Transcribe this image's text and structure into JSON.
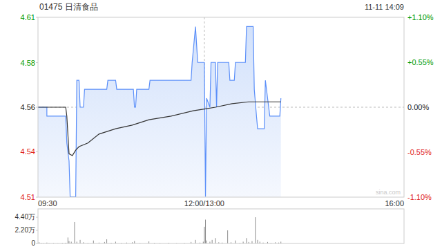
{
  "chart_data": [
    {
      "type": "line",
      "title": "01475 日清食品",
      "subtitle": "11-11 14:09",
      "annotations": [
        "sina.com"
      ],
      "xlim": [
        0,
        330
      ],
      "xticks": [
        {
          "value": 0,
          "label": "09:30"
        },
        {
          "value": 150,
          "label": "12:00/13:00"
        },
        {
          "value": 330,
          "label": "16:00"
        }
      ],
      "ylim": [
        4.5098,
        4.6102
      ],
      "yticks": [
        {
          "value": 4.5098,
          "label": "4.51"
        },
        {
          "value": 4.5351,
          "label": "4.54"
        },
        {
          "value": 4.56,
          "label": "4.56"
        },
        {
          "value": 4.5849,
          "label": "4.58"
        },
        {
          "value": 4.6102,
          "label": "4.61"
        }
      ],
      "y2lim": [
        -1.1,
        1.1
      ],
      "y2ticks": [
        {
          "value": -1.1,
          "label": "-1.10%"
        },
        {
          "value": -0.55,
          "label": "-0.55%"
        },
        {
          "value": 0,
          "label": "0.00%"
        },
        {
          "value": 0.55,
          "label": "+0.55%"
        },
        {
          "value": 1.1,
          "label": "+1.10%"
        }
      ],
      "grid": true,
      "series": [
        {
          "type": "area",
          "color": "#5b8ff9",
          "x": [
            0,
            8,
            8,
            25,
            26,
            28,
            29,
            34,
            35,
            37,
            38,
            41,
            42,
            62,
            63,
            70,
            71,
            86,
            87,
            88,
            89,
            100,
            101,
            138,
            139,
            142,
            144,
            150,
            151,
            152,
            155,
            156,
            160,
            161,
            162,
            172,
            173,
            177,
            178,
            187,
            188,
            194,
            195,
            197,
            198,
            204,
            205,
            209,
            218,
            219
          ],
          "values": [
            4.56,
            4.56,
            4.555,
            4.555,
            4.54,
            4.53,
            4.51,
            4.51,
            4.575,
            4.575,
            4.56,
            4.56,
            4.57,
            4.57,
            4.575,
            4.575,
            4.57,
            4.57,
            4.56,
            4.56,
            4.57,
            4.57,
            4.575,
            4.575,
            4.585,
            4.605,
            4.585,
            4.585,
            4.51,
            4.565,
            4.56,
            4.585,
            4.585,
            4.56,
            4.585,
            4.585,
            4.575,
            4.575,
            4.585,
            4.585,
            4.605,
            4.605,
            4.57,
            4.555,
            4.548,
            4.548,
            4.575,
            4.555,
            4.555,
            4.565
          ]
        },
        {
          "type": "line",
          "color": "#333333",
          "x": [
            0,
            25,
            26,
            28,
            31,
            34,
            37,
            45,
            55,
            70,
            85,
            100,
            120,
            140,
            150,
            160,
            175,
            190,
            200,
            219
          ],
          "values": [
            4.56,
            4.56,
            4.555,
            4.534,
            4.533,
            4.536,
            4.538,
            4.54,
            4.545,
            4.548,
            4.55,
            4.553,
            4.555,
            4.558,
            4.559,
            4.56,
            4.562,
            4.563,
            4.563,
            4.563
          ]
        }
      ]
    },
    {
      "type": "bar",
      "color": "#8c8c8c",
      "tick_labels": "y",
      "xlim": [
        0,
        330
      ],
      "ylim": [
        0,
        58000
      ],
      "yticks": [
        0,
        {
          "value": 22000,
          "label": "2.20万"
        },
        {
          "value": 44000,
          "label": "4.40万"
        }
      ],
      "x": [
        1,
        3,
        5,
        8,
        10,
        14,
        18,
        22,
        25,
        27,
        28,
        30,
        33,
        35,
        38,
        41,
        45,
        50,
        55,
        60,
        62,
        66,
        70,
        75,
        80,
        85,
        87,
        92,
        100,
        105,
        110,
        118,
        125,
        132,
        138,
        142,
        146,
        149,
        150,
        151,
        152,
        155,
        157,
        160,
        163,
        166,
        171,
        174,
        178,
        182,
        185,
        188,
        190,
        193,
        196,
        198,
        200,
        203,
        207,
        210,
        214,
        217,
        219
      ],
      "values": [
        2000,
        800,
        600,
        1500,
        500,
        700,
        400,
        900,
        1200,
        10000,
        4000,
        3000,
        36000,
        3000,
        6000,
        2000,
        800,
        5000,
        1500,
        2500,
        7000,
        1200,
        3000,
        900,
        1500,
        2000,
        4000,
        700,
        3500,
        1000,
        800,
        1200,
        600,
        900,
        2500,
        6000,
        1500,
        3000,
        28000,
        40000,
        5000,
        3000,
        6000,
        9000,
        2000,
        1500,
        22000,
        2000,
        5000,
        1000,
        3000,
        9000,
        2500,
        4000,
        44000,
        6000,
        3000,
        1500,
        2500,
        1000,
        2000,
        1500,
        3000
      ]
    }
  ]
}
